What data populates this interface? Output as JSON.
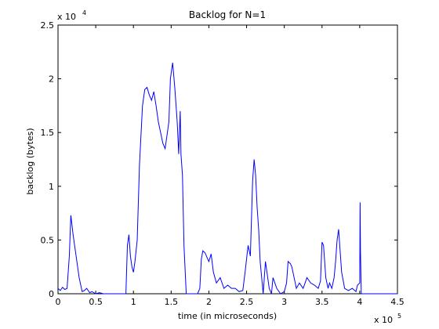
{
  "chart_data": {
    "type": "line",
    "title": "Backlog for N=1",
    "xlabel": "time (in microseconds)",
    "ylabel": "backlog (bytes)",
    "x_multiplier_base": "x 10",
    "x_multiplier_exp": "5",
    "y_multiplier_base": "x 10",
    "y_multiplier_exp": "4",
    "xlim": [
      0,
      4.5
    ],
    "ylim": [
      0,
      2.5
    ],
    "x_ticks": [
      0,
      0.5,
      1,
      1.5,
      2,
      2.5,
      3,
      3.5,
      4,
      4.5
    ],
    "x_tick_labels": [
      "0",
      "0.5",
      "1",
      "1.5",
      "2",
      "2.5",
      "3",
      "3.5",
      "4",
      "4.5"
    ],
    "y_ticks": [
      0,
      0.5,
      1,
      1.5,
      2,
      2.5
    ],
    "y_tick_labels": [
      "0",
      "0.5",
      "1",
      "1.5",
      "2",
      "2.5"
    ],
    "grid": false,
    "line_color": "#0000ff",
    "series": [
      {
        "x": [
          0,
          0.03,
          0.06,
          0.09,
          0.12,
          0.15,
          0.17,
          0.2,
          0.24,
          0.28,
          0.32,
          0.35,
          0.38,
          0.42,
          0.45,
          0.5,
          0.55,
          0.6,
          0.65,
          0.7,
          0.75,
          0.8,
          0.85,
          0.9,
          0.92,
          0.94,
          0.96,
          0.98,
          1.0,
          1.02,
          1.05,
          1.08,
          1.12,
          1.15,
          1.18,
          1.21,
          1.24,
          1.27,
          1.3,
          1.33,
          1.36,
          1.39,
          1.42,
          1.45,
          1.47,
          1.49,
          1.52,
          1.55,
          1.58,
          1.6,
          1.62,
          1.63,
          1.65,
          1.67,
          1.7,
          1.72,
          1.75,
          1.8,
          1.85,
          1.88,
          1.9,
          1.92,
          1.95,
          1.98,
          2.0,
          2.03,
          2.06,
          2.1,
          2.15,
          2.2,
          2.25,
          2.3,
          2.35,
          2.4,
          2.45,
          2.48,
          2.52,
          2.55,
          2.58,
          2.6,
          2.62,
          2.64,
          2.66,
          2.68,
          2.7,
          2.72,
          2.75,
          2.8,
          2.83,
          2.85,
          2.9,
          2.95,
          3.0,
          3.03,
          3.05,
          3.08,
          3.1,
          3.13,
          3.16,
          3.2,
          3.25,
          3.3,
          3.35,
          3.4,
          3.45,
          3.48,
          3.5,
          3.52,
          3.55,
          3.58,
          3.6,
          3.63,
          3.66,
          3.68,
          3.7,
          3.72,
          3.74,
          3.76,
          3.8,
          3.85,
          3.9,
          3.95,
          3.97,
          4.0,
          4.005,
          4.01,
          4.02,
          4.1,
          4.2,
          4.3,
          4.4,
          4.5
        ],
        "y": [
          0.05,
          0.03,
          0.06,
          0.04,
          0.05,
          0.35,
          0.73,
          0.55,
          0.35,
          0.15,
          0.02,
          0.03,
          0.05,
          0.01,
          0.02,
          0.0,
          0.01,
          0.0,
          0.0,
          0.0,
          0.0,
          0.0,
          0.0,
          0.0,
          0.45,
          0.55,
          0.35,
          0.25,
          0.2,
          0.3,
          0.5,
          1.2,
          1.75,
          1.9,
          1.92,
          1.85,
          1.8,
          1.88,
          1.75,
          1.6,
          1.5,
          1.4,
          1.35,
          1.5,
          1.6,
          2.0,
          2.15,
          1.9,
          1.6,
          1.3,
          1.7,
          1.3,
          1.1,
          0.45,
          0.0,
          0.0,
          0.0,
          0.0,
          0.0,
          0.05,
          0.32,
          0.4,
          0.38,
          0.33,
          0.3,
          0.37,
          0.2,
          0.1,
          0.15,
          0.05,
          0.08,
          0.05,
          0.05,
          0.02,
          0.03,
          0.2,
          0.45,
          0.35,
          1.05,
          1.25,
          1.1,
          0.8,
          0.6,
          0.3,
          0.15,
          0.0,
          0.3,
          0.05,
          0.0,
          0.15,
          0.05,
          0.0,
          0.02,
          0.1,
          0.3,
          0.28,
          0.25,
          0.15,
          0.05,
          0.1,
          0.05,
          0.15,
          0.1,
          0.08,
          0.05,
          0.12,
          0.48,
          0.45,
          0.15,
          0.05,
          0.1,
          0.05,
          0.15,
          0.3,
          0.5,
          0.6,
          0.4,
          0.2,
          0.05,
          0.03,
          0.05,
          0.02,
          0.08,
          0.1,
          0.85,
          0.4,
          0.0,
          0.0,
          0.0,
          0.0,
          0.0,
          0.0
        ]
      }
    ]
  }
}
